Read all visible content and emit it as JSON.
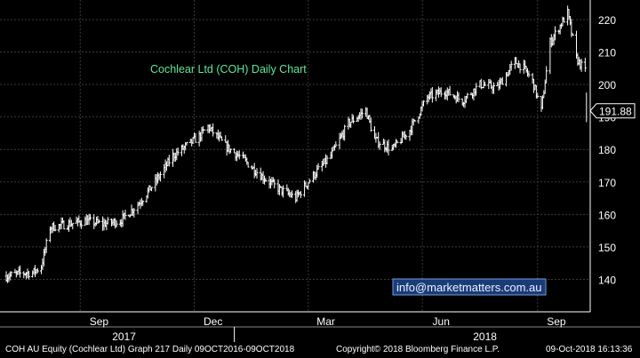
{
  "chart_data": {
    "type": "candlestick",
    "title": "Cochlear Ltd (COH) Daily Chart",
    "y_ticks": [
      140,
      150,
      160,
      170,
      180,
      190,
      200,
      210,
      220
    ],
    "ylim": [
      130,
      226
    ],
    "x_month_labels": [
      "Sep",
      "Dec",
      "Mar",
      "Jun",
      "Sep"
    ],
    "x_year_labels": [
      "2017",
      "2018"
    ],
    "last_price_label": "191.88",
    "watermark": "info@marketmatters.com.au",
    "grid": true,
    "price_series": {
      "name": "COH AU Equity",
      "x": [
        "2017-07-03",
        "2017-07-17",
        "2017-07-24",
        "2017-07-31",
        "2017-08-07",
        "2017-08-21",
        "2017-09-04",
        "2017-09-18",
        "2017-10-02",
        "2017-10-16",
        "2017-10-30",
        "2017-11-13",
        "2017-11-27",
        "2017-12-04",
        "2017-12-11",
        "2017-12-25",
        "2018-01-08",
        "2018-01-22",
        "2018-02-05",
        "2018-02-19",
        "2018-03-05",
        "2018-03-19",
        "2018-04-02",
        "2018-04-16",
        "2018-04-23",
        "2018-05-07",
        "2018-05-21",
        "2018-06-04",
        "2018-06-18",
        "2018-07-02",
        "2018-07-16",
        "2018-07-30",
        "2018-08-06",
        "2018-08-13",
        "2018-08-20",
        "2018-08-27",
        "2018-09-03",
        "2018-09-10",
        "2018-09-24",
        "2018-10-01",
        "2018-10-08"
      ],
      "y": [
        141,
        142,
        142,
        144,
        156,
        157,
        158,
        157,
        158,
        163,
        170,
        178,
        182,
        184,
        187,
        181,
        177,
        172,
        168,
        165,
        172,
        178,
        188,
        192,
        183,
        180,
        186,
        196,
        198,
        195,
        200,
        199,
        203,
        207,
        205,
        201,
        192,
        213,
        222,
        208,
        204
      ]
    }
  },
  "footer": {
    "left": "COH AU Equity (Cochlear Ltd) Graph 217  Daily 09OCT2016-09OCT2018",
    "middle": "Copyright© 2018 Bloomberg Finance L.P.",
    "right": "09-Oct-2018 16:13:36"
  },
  "colors": {
    "background": "#000000",
    "grid": "#3a3a3a",
    "bars": "#ffffff",
    "title": "#5ee89a",
    "watermark_text": "#eaf2ff",
    "watermark_border": "#6aa0d8",
    "watermark_bg": "#1b3b78"
  }
}
